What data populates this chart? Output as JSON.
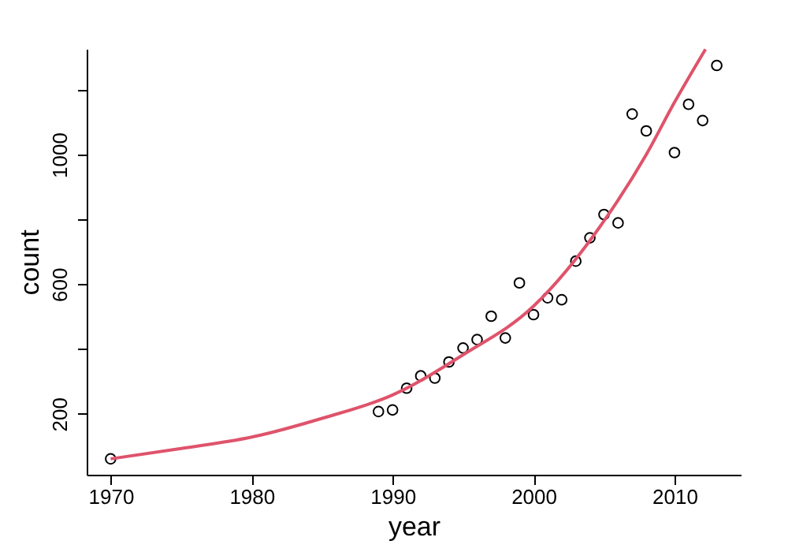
{
  "chart_data": {
    "type": "scatter",
    "xlabel": "year",
    "ylabel": "count",
    "xlim": [
      1968.3,
      2014.7
    ],
    "ylim": [
      12,
      1326
    ],
    "xticks": [
      1970,
      1980,
      1990,
      2000,
      2010
    ],
    "yticks": [
      200,
      {
        "value": 400,
        "label": null
      },
      600,
      {
        "value": 800,
        "label": null
      },
      1000,
      {
        "value": 1200,
        "label": null
      }
    ],
    "grid": false,
    "series": [
      {
        "marker": "circle",
        "color": "#000000",
        "x": [
          1970,
          1989,
          1990,
          1991,
          1992,
          1993,
          1994,
          1995,
          1996,
          1997,
          1998,
          1999,
          2000,
          2001,
          2002,
          2003,
          2004,
          2005,
          2006,
          2007,
          2008,
          2010,
          2011,
          2012,
          2013
        ],
        "values": [
          61,
          207,
          212,
          279,
          317,
          310,
          360,
          403,
          429,
          501,
          434,
          604,
          506,
          558,
          552,
          671,
          743,
          815,
          789,
          1125,
          1073,
          1006,
          1155,
          1105,
          1275
        ]
      },
      {
        "type": "line",
        "color": "#df536b",
        "x": [
          1970,
          1975,
          1980,
          1985,
          1990,
          1995,
          2000,
          2005,
          2008,
          2010,
          2012.2
        ],
        "values": [
          61,
          93,
          128,
          186,
          258,
          382,
          532,
          795,
          1000,
          1161,
          1325
        ]
      }
    ]
  }
}
